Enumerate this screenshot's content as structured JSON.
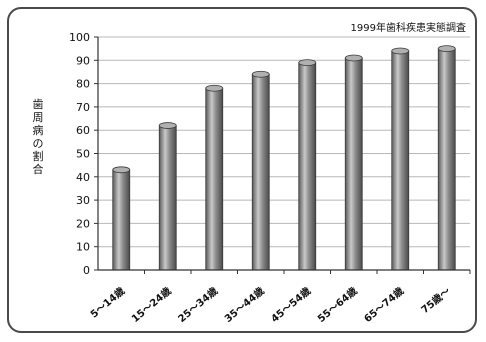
{
  "chart_data": {
    "type": "bar",
    "title": "1999年歯科疾患実態調査",
    "xlabel": "",
    "ylabel": "歯周病の割合",
    "ylim": [
      0,
      100
    ],
    "yticks": [
      0,
      10,
      20,
      30,
      40,
      50,
      60,
      70,
      80,
      90,
      100
    ],
    "categories": [
      "5～14歳",
      "15～24歳",
      "25～34歳",
      "35～44歳",
      "45～54歳",
      "55～64歳",
      "65～74歳",
      "75歳～"
    ],
    "values": [
      43,
      62,
      78,
      84,
      89,
      91,
      94,
      95
    ],
    "grid": true,
    "legend": "none",
    "bar_color": "#8c8c8c"
  }
}
